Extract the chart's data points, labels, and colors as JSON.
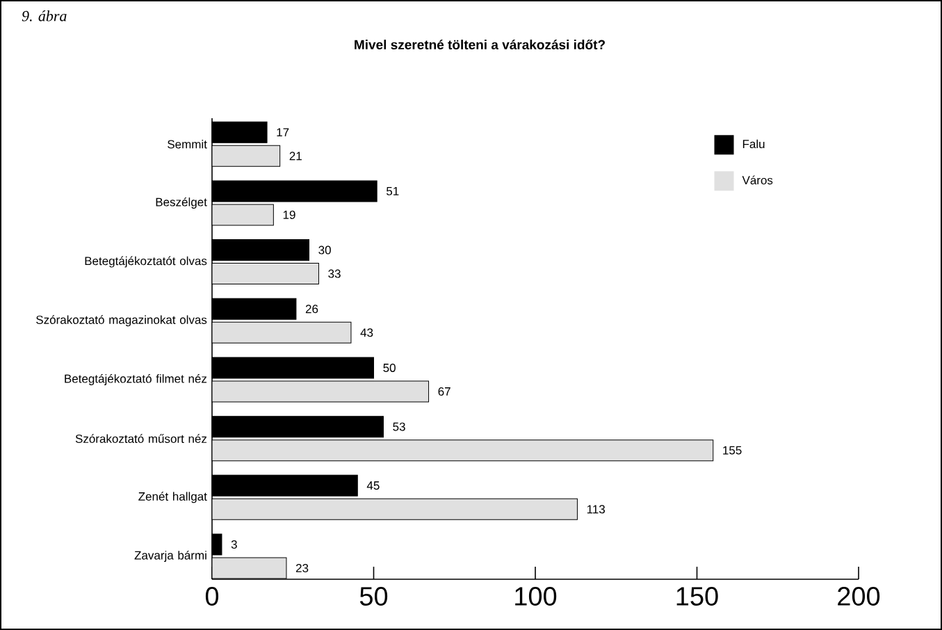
{
  "chart_data": {
    "type": "bar",
    "orientation": "horizontal",
    "title": "Mivel szeretné tölteni a várakozási időt?",
    "annotations": [
      "9. ábra"
    ],
    "categories": [
      "Semmit",
      "Beszélget",
      "Betegtájékoztatót olvas",
      "Szórakoztató magazinokat olvas",
      "Betegtájékoztató filmet néz",
      "Szórakoztató műsort néz",
      "Zenét hallgat",
      "Zavarja bármi"
    ],
    "series": [
      {
        "name": "Falu",
        "color": "#000000",
        "values": [
          17,
          51,
          30,
          26,
          50,
          53,
          45,
          3
        ]
      },
      {
        "name": "Város",
        "color": "#e0e0e0",
        "values": [
          21,
          19,
          33,
          43,
          67,
          155,
          113,
          23
        ]
      }
    ],
    "xlim": [
      0,
      200
    ],
    "xticks": [
      0,
      50,
      100,
      150,
      200
    ],
    "data_labels": true,
    "grid": false,
    "legend": "top right"
  }
}
